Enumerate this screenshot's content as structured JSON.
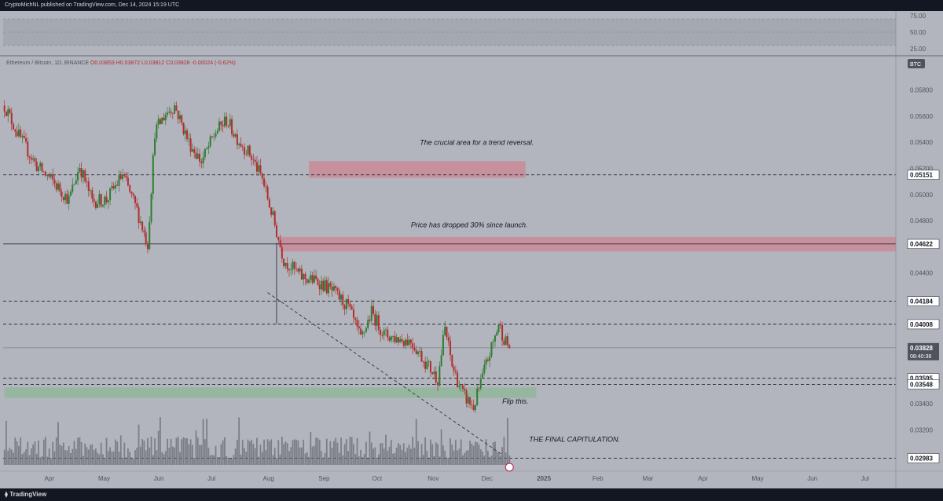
{
  "header": {
    "publish_line": "CryptoMichNL published on TradingView.com, Dec 14, 2024 15:19 UTC"
  },
  "footer": {
    "brand": "TradingView"
  },
  "chart_data": [
    {
      "type": "line",
      "title": "",
      "yticks": [
        "75.00",
        "50.00",
        "25.00"
      ],
      "ylim": [
        25,
        75
      ],
      "band": [
        30,
        70
      ]
    },
    {
      "type": "candlestick",
      "title": "Ethereum / Bitcoin, 1D, BINANCE",
      "ohlc_label": {
        "open": "O0.03853",
        "high": "H0.03872",
        "low": "L0.03812",
        "close": "C0.03828",
        "change": "-0.00024 (-0.62%)"
      },
      "currency_badge": "BTC",
      "ylim": [
        0.0292,
        0.0602
      ],
      "yticks": [
        "0.05800",
        "0.05600",
        "0.05400",
        "0.05200",
        "0.05000",
        "0.04800",
        "0.04400",
        "0.04200",
        "0.03800",
        "0.03600",
        "0.03400",
        "0.03200"
      ],
      "xticks": [
        "Apr",
        "May",
        "Jun",
        "Jul",
        "Aug",
        "Sep",
        "Oct",
        "Nov",
        "Dec",
        "2025",
        "Feb",
        "Mar",
        "Apr",
        "May",
        "Jun",
        "Jul"
      ],
      "levels": [
        {
          "value": 0.05151,
          "label": "0.05151",
          "style": "dashed"
        },
        {
          "value": 0.04622,
          "label": "0.04622",
          "style": "solid"
        },
        {
          "value": 0.04184,
          "label": "0.04184",
          "style": "dashed"
        },
        {
          "value": 0.04008,
          "label": "0.04008",
          "style": "dashed"
        },
        {
          "value": 0.03595,
          "label": "0.03595",
          "style": "dashed"
        },
        {
          "value": 0.03548,
          "label": "0.03548",
          "style": "dashed"
        },
        {
          "value": 0.02983,
          "label": "0.02983",
          "style": "dashed"
        }
      ],
      "current_price": {
        "value": 0.03828,
        "label": "0.03828",
        "countdown": "08:40:38"
      },
      "zones": [
        {
          "color": "#c98a96",
          "y_range": [
            0.05128,
            0.05255
          ],
          "x_range": [
            "2024-08-24",
            "2024-12-23"
          ]
        },
        {
          "color": "#c98a96",
          "y_range": [
            0.04565,
            0.04675
          ],
          "x_range": [
            "2024-08-08",
            "2025-07-31"
          ]
        },
        {
          "color": "#8fb79a",
          "y_range": [
            0.03445,
            0.03525
          ],
          "x_range": [
            "2024-03-07",
            "2024-12-29"
          ]
        }
      ],
      "annotations": [
        "The crucial area for a trend reversal.",
        "Price has dropped 30% since launch.",
        "Flip this.",
        "THE FINAL CAPITULATION."
      ],
      "price_path": [
        [
          "2024-03-07",
          0.0568
        ],
        [
          "2024-03-15",
          0.0545
        ],
        [
          "2024-03-25",
          0.0522
        ],
        [
          "2024-04-03",
          0.051
        ],
        [
          "2024-04-12",
          0.0496
        ],
        [
          "2024-04-18",
          0.0522
        ],
        [
          "2024-04-25",
          0.0495
        ],
        [
          "2024-05-03",
          0.0496
        ],
        [
          "2024-05-12",
          0.0515
        ],
        [
          "2024-05-20",
          0.0488
        ],
        [
          "2024-05-26",
          0.0462
        ],
        [
          "2024-05-30",
          0.0548
        ],
        [
          "2024-06-05",
          0.0562
        ],
        [
          "2024-06-10",
          0.0568
        ],
        [
          "2024-06-18",
          0.054
        ],
        [
          "2024-06-25",
          0.0525
        ],
        [
          "2024-07-03",
          0.0548
        ],
        [
          "2024-07-09",
          0.0557
        ],
        [
          "2024-07-15",
          0.0543
        ],
        [
          "2024-07-22",
          0.0531
        ],
        [
          "2024-07-29",
          0.0512
        ],
        [
          "2024-08-04",
          0.0482
        ],
        [
          "2024-08-10",
          0.045
        ],
        [
          "2024-08-20",
          0.0437
        ],
        [
          "2024-08-30",
          0.0433
        ],
        [
          "2024-09-07",
          0.0425
        ],
        [
          "2024-09-15",
          0.0414
        ],
        [
          "2024-09-22",
          0.0389
        ],
        [
          "2024-09-28",
          0.041
        ],
        [
          "2024-10-05",
          0.0393
        ],
        [
          "2024-10-12",
          0.039
        ],
        [
          "2024-10-20",
          0.0388
        ],
        [
          "2024-10-28",
          0.0372
        ],
        [
          "2024-11-04",
          0.0359
        ],
        [
          "2024-11-08",
          0.0398
        ],
        [
          "2024-11-12",
          0.0369
        ],
        [
          "2024-11-18",
          0.0347
        ],
        [
          "2024-11-24",
          0.0337
        ],
        [
          "2024-11-28",
          0.0356
        ],
        [
          "2024-12-01",
          0.037
        ],
        [
          "2024-12-05",
          0.0387
        ],
        [
          "2024-12-08",
          0.0401
        ],
        [
          "2024-12-11",
          0.039
        ],
        [
          "2024-12-13",
          0.0385
        ],
        [
          "2024-12-14",
          0.03828
        ]
      ]
    }
  ]
}
